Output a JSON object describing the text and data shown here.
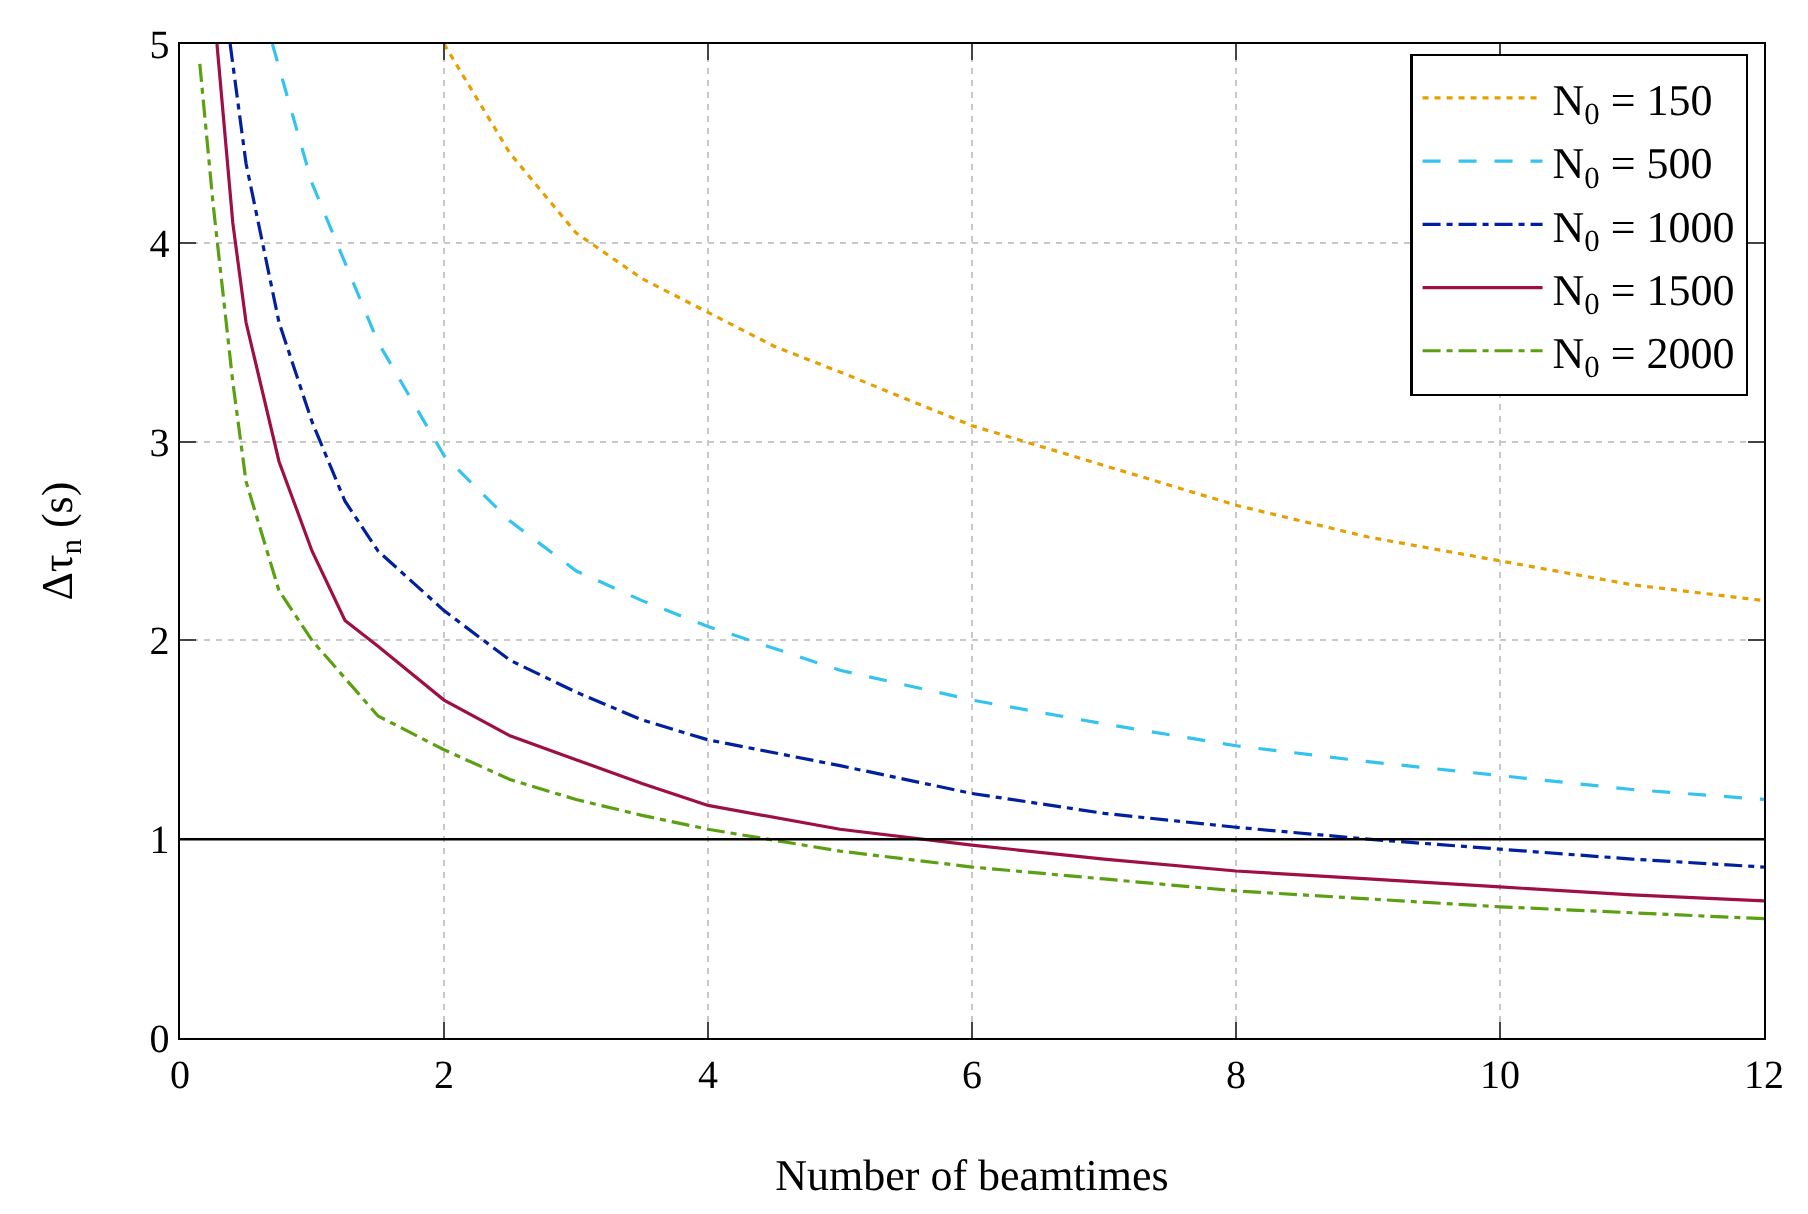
{
  "chart_data": {
    "type": "line",
    "xlabel": "Number of beamtimes",
    "ylabel": "Δτ$_{n}$ (s)",
    "xlim": [
      0,
      12
    ],
    "xticks": [
      0,
      2,
      4,
      6,
      8,
      10,
      12
    ],
    "ylim": [
      0,
      5
    ],
    "yticks": [
      0,
      1,
      2,
      3,
      4,
      5
    ],
    "grid": true,
    "legend": "top right",
    "marker": "none",
    "ref_lines": [
      {
        "axis": "y",
        "value": 1,
        "color": "#000000",
        "line_style": "solid"
      }
    ],
    "series": [
      {
        "name": "N$_{0}$ = 150",
        "color": "#e69f00",
        "line_style": "dotted",
        "x": [
          2,
          2.5,
          3,
          3.5,
          4,
          4.5,
          5,
          6,
          7,
          8,
          9,
          10,
          11,
          12
        ],
        "values": [
          5,
          4.45,
          4.05,
          3.82,
          3.65,
          3.48,
          3.35,
          3.08,
          2.88,
          2.68,
          2.52,
          2.4,
          2.28,
          2.2
        ]
      },
      {
        "name": "N$_{0}$ = 500",
        "color": "#33c3ef",
        "line_style": "dashed",
        "x": [
          0.7,
          1,
          1.5,
          2,
          2.5,
          3,
          3.5,
          4,
          5,
          6,
          7,
          8,
          9,
          10,
          11,
          12
        ],
        "values": [
          5,
          4.3,
          3.5,
          2.93,
          2.6,
          2.35,
          2.2,
          2.07,
          1.85,
          1.7,
          1.58,
          1.47,
          1.39,
          1.32,
          1.25,
          1.2
        ]
      },
      {
        "name": "N$_{0}$ = 1000",
        "color": "#00209f",
        "line_style": "dashdot",
        "x": [
          0.38,
          0.5,
          0.75,
          1,
          1.25,
          1.5,
          2,
          2.5,
          3,
          3.5,
          4,
          5,
          6,
          7,
          8,
          9,
          10,
          11,
          12
        ],
        "values": [
          5,
          4.4,
          3.6,
          3.1,
          2.7,
          2.45,
          2.15,
          1.9,
          1.74,
          1.6,
          1.5,
          1.37,
          1.23,
          1.13,
          1.06,
          1.0,
          0.95,
          0.9,
          0.86
        ]
      },
      {
        "name": "N$_{0}$ = 1500",
        "color": "#9e1045",
        "line_style": "solid",
        "x": [
          0.28,
          0.4,
          0.5,
          0.75,
          1,
          1.25,
          1.5,
          2,
          2.5,
          3,
          3.5,
          4,
          5,
          6,
          7,
          8,
          9,
          10,
          11,
          12
        ],
        "values": [
          5,
          4.1,
          3.6,
          2.9,
          2.45,
          2.1,
          1.97,
          1.7,
          1.52,
          1.4,
          1.28,
          1.17,
          1.05,
          0.97,
          0.9,
          0.84,
          0.8,
          0.76,
          0.72,
          0.69
        ]
      },
      {
        "name": "N$_{0}$ = 2000",
        "color": "#5aa012",
        "line_style": "dashdot",
        "x": [
          0.15,
          0.25,
          0.4,
          0.5,
          0.75,
          1,
          1.5,
          2,
          2.5,
          3,
          3.5,
          4,
          5,
          6,
          7,
          8,
          9,
          10,
          11,
          12
        ],
        "values": [
          4.9,
          4.2,
          3.3,
          2.8,
          2.25,
          2.0,
          1.62,
          1.45,
          1.3,
          1.2,
          1.12,
          1.05,
          0.94,
          0.86,
          0.8,
          0.74,
          0.7,
          0.66,
          0.63,
          0.6
        ]
      }
    ]
  }
}
